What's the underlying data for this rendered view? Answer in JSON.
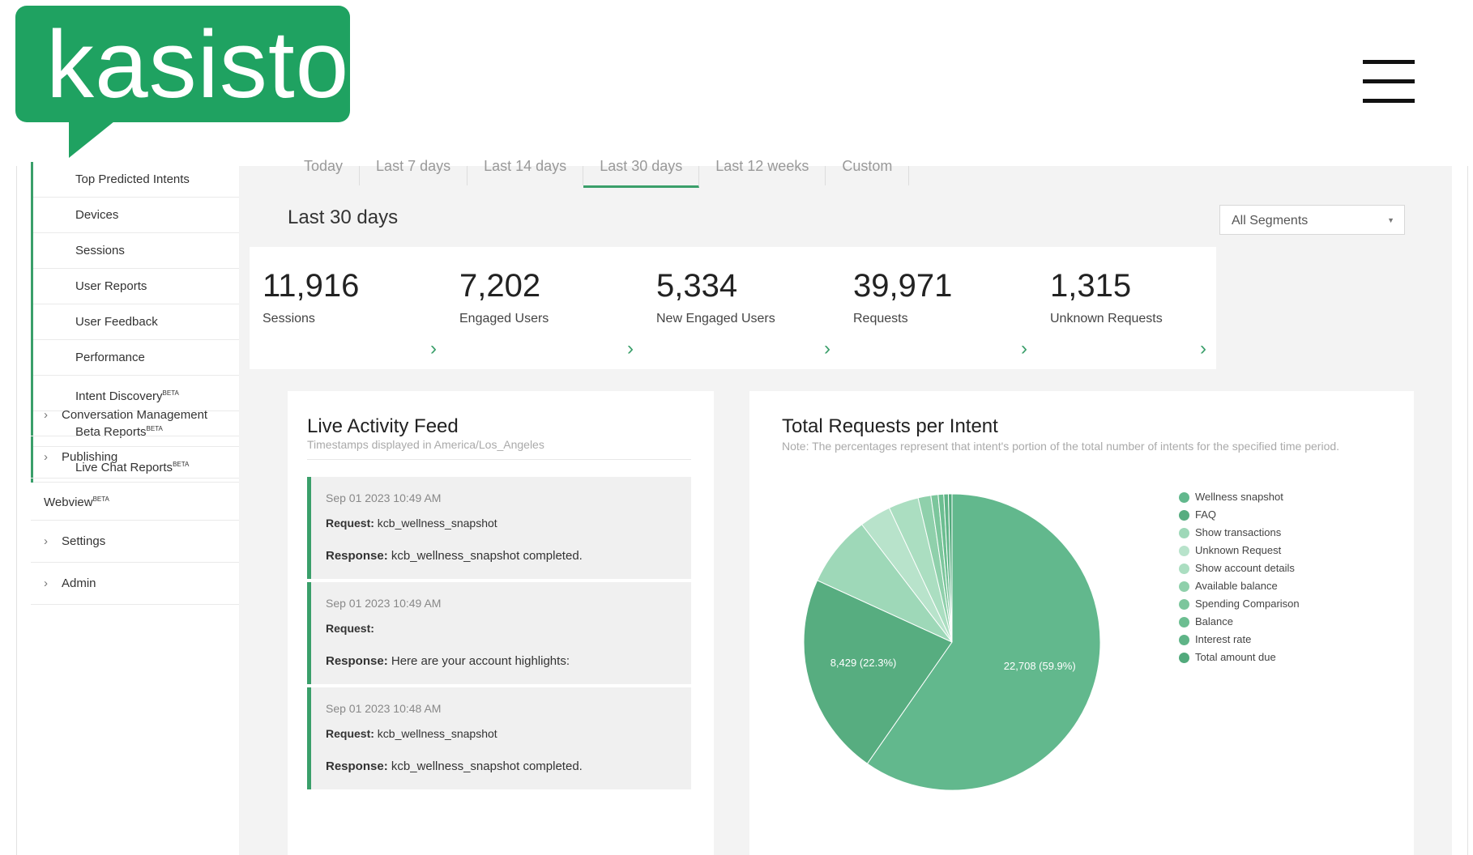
{
  "brand": {
    "logo_text": "kasisto",
    "color": "#1fa261"
  },
  "sidebar": {
    "sub_items": [
      {
        "label": "Top Predicted Intents",
        "beta": ""
      },
      {
        "label": "Devices",
        "beta": ""
      },
      {
        "label": "Sessions",
        "beta": ""
      },
      {
        "label": "User Reports",
        "beta": ""
      },
      {
        "label": "User Feedback",
        "beta": ""
      },
      {
        "label": "Performance",
        "beta": ""
      },
      {
        "label": "Intent Discovery",
        "beta": "BETA"
      },
      {
        "label": "Beta Reports",
        "beta": "BETA"
      },
      {
        "label": "Live Chat Reports",
        "beta": "BETA"
      }
    ],
    "main_items": [
      {
        "label": "Conversation Management",
        "beta": "",
        "chevron": true
      },
      {
        "label": "Publishing",
        "beta": "",
        "chevron": true
      },
      {
        "label": "Webview",
        "beta": "BETA",
        "chevron": false
      },
      {
        "label": "Settings",
        "beta": "",
        "chevron": true
      },
      {
        "label": "Admin",
        "beta": "",
        "chevron": true
      }
    ]
  },
  "tabs": [
    "Today",
    "Last 7 days",
    "Last 14 days",
    "Last 30 days",
    "Last 12 weeks",
    "Custom"
  ],
  "active_tab": "Last 30 days",
  "range_title": "Last 30 days",
  "segments": {
    "selected": "All Segments"
  },
  "stats": [
    {
      "value": "11,916",
      "label": "Sessions"
    },
    {
      "value": "7,202",
      "label": "Engaged Users"
    },
    {
      "value": "5,334",
      "label": "New Engaged Users"
    },
    {
      "value": "39,971",
      "label": "Requests"
    },
    {
      "value": "1,315",
      "label": "Unknown Requests"
    }
  ],
  "feed": {
    "title": "Live Activity Feed",
    "subtitle": "Timestamps displayed in America/Los_Angeles",
    "entries": [
      {
        "timestamp": "Sep 01 2023 10:49 AM",
        "request_label": "Request:",
        "request": "kcb_wellness_snapshot",
        "response_label": "Response:",
        "response": "kcb_wellness_snapshot completed."
      },
      {
        "timestamp": "Sep 01 2023 10:49 AM",
        "request_label": "Request:",
        "request": "",
        "response_label": "Response:",
        "response": "Here are your account highlights:"
      },
      {
        "timestamp": "Sep 01 2023 10:48 AM",
        "request_label": "Request:",
        "request": "kcb_wellness_snapshot",
        "response_label": "Response:",
        "response": "kcb_wellness_snapshot completed."
      }
    ]
  },
  "chart_panel": {
    "title": "Total Requests per Intent",
    "note": "Note: The percentages represent that intent's portion of the total number of intents for the specified time period."
  },
  "chart_data": {
    "type": "pie",
    "title": "Total Requests per Intent",
    "slices": [
      {
        "label": "Wellness snapshot",
        "value": 22708,
        "percent": 59.9,
        "data_label": "22,708 (59.9%)",
        "color": "#62b88d"
      },
      {
        "label": "FAQ",
        "value": 8429,
        "percent": 22.3,
        "data_label": "8,429 (22.3%)",
        "color": "#57ad80"
      },
      {
        "label": "Show transactions",
        "value": 2950,
        "percent": 7.8,
        "data_label": "",
        "color": "#9ed8b8"
      },
      {
        "label": "Unknown Request",
        "value": 1310,
        "percent": 3.5,
        "data_label": "",
        "color": "#b8e3cb"
      },
      {
        "label": "Show account details",
        "value": 1250,
        "percent": 3.3,
        "data_label": "",
        "color": "#abdec1"
      },
      {
        "label": "Available balance",
        "value": 530,
        "percent": 1.4,
        "data_label": "",
        "color": "#8fd0ab"
      },
      {
        "label": "Spending Comparison",
        "value": 300,
        "percent": 0.8,
        "data_label": "",
        "color": "#7cc69c"
      },
      {
        "label": "Balance",
        "value": 230,
        "percent": 0.6,
        "data_label": "",
        "color": "#6cbe91"
      },
      {
        "label": "Interest rate",
        "value": 190,
        "percent": 0.5,
        "data_label": "",
        "color": "#5fb487"
      },
      {
        "label": "Total amount due",
        "value": 150,
        "percent": 0.4,
        "data_label": "",
        "color": "#52aa7c"
      }
    ],
    "legend_position": "right"
  }
}
